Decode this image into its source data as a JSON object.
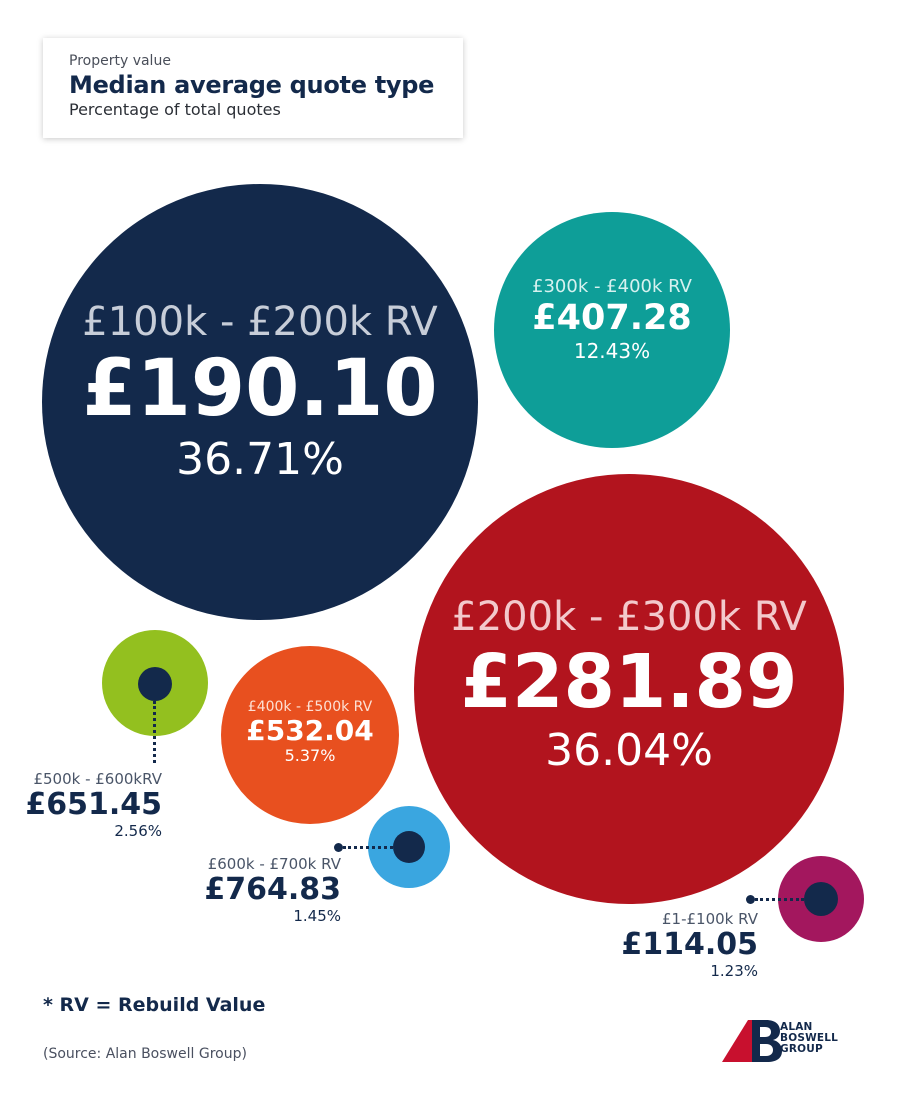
{
  "header": {
    "eyebrow": "Property value",
    "title": "Median average quote type",
    "subtitle": "Percentage of total quotes"
  },
  "chart_data": {
    "type": "bubble",
    "title": "Median average quote type",
    "subtitle": "Percentage of total quotes",
    "size_encodes": "percentage of total quotes",
    "series": [
      {
        "category": "£100k - £200k RV",
        "value_label": "£190.10",
        "median_quote_gbp": 190.1,
        "percentage_label": "36.71%",
        "percentage": 36.71,
        "color": "#13294b"
      },
      {
        "category": "£300k - £400k RV",
        "value_label": "£407.28",
        "median_quote_gbp": 407.28,
        "percentage_label": "12.43%",
        "percentage": 12.43,
        "color": "#0e9e98"
      },
      {
        "category": "£200k - £300k RV",
        "value_label": "£281.89",
        "median_quote_gbp": 281.89,
        "percentage_label": "36.04%",
        "percentage": 36.04,
        "color": "#b2141e"
      },
      {
        "category": "£400k - £500k RV",
        "value_label": "£532.04",
        "median_quote_gbp": 532.04,
        "percentage_label": "5.37%",
        "percentage": 5.37,
        "color": "#e8501f"
      },
      {
        "category": "£500k - £600kRV",
        "value_label": "£651.45",
        "median_quote_gbp": 651.45,
        "percentage_label": "2.56%",
        "percentage": 2.56,
        "color": "#93c01f"
      },
      {
        "category": "£600k - £700k RV",
        "value_label": "£764.83",
        "median_quote_gbp": 764.83,
        "percentage_label": "1.45%",
        "percentage": 1.45,
        "color": "#3aa6e0"
      },
      {
        "category": "£1-£100k RV",
        "value_label": "£114.05",
        "median_quote_gbp": 114.05,
        "percentage_label": "1.23%",
        "percentage": 1.23,
        "color": "#a3175e"
      }
    ]
  },
  "footnote": "* RV = Rebuild Value",
  "source": "(Source: Alan Boswell Group)",
  "logo": {
    "line1": "ALAN",
    "line2": "BOSWELL",
    "line3": "GROUP"
  },
  "colors": {
    "navy": "#13294b",
    "teal": "#0e9e98",
    "red": "#b2141e",
    "orange": "#e8501f",
    "green": "#93c01f",
    "blue": "#3aa6e0",
    "magenta": "#a3175e"
  }
}
